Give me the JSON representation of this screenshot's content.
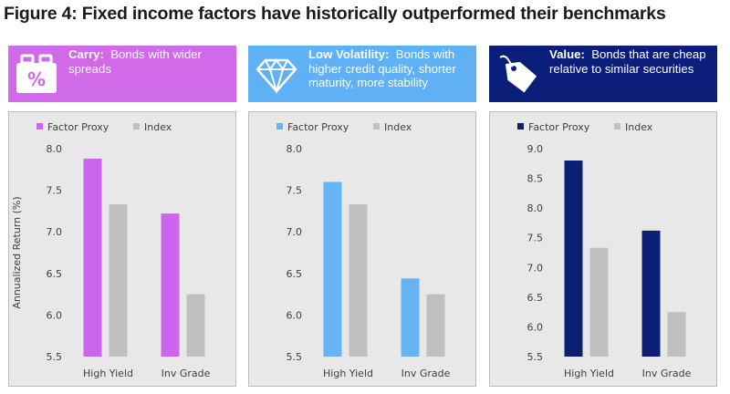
{
  "title": "Figure 4: Fixed income factors have historically outperformed their benchmarks",
  "ylabel": "Annualized Return (%)",
  "panels": [
    {
      "name": "Carry:",
      "text": "Bonds with wider spreads",
      "header_color": "#d16ae8",
      "bar_color": "#cc66ee",
      "icon": "briefcase-percent-icon"
    },
    {
      "name": "Low Volatility:",
      "text": "Bonds with higher credit quality, shorter maturity, more stability",
      "header_color": "#5fb0f5",
      "bar_color": "#66b3f5",
      "icon": "diamond-icon"
    },
    {
      "name": "Value:",
      "text": "Bonds that are cheap relative to similar securities",
      "header_color": "#0b1f7a",
      "bar_color": "#0d1f73",
      "icon": "price-tag-icon"
    }
  ],
  "chart_data": [
    {
      "type": "bar",
      "categories": [
        "High Yield",
        "Inv Grade"
      ],
      "series": [
        {
          "name": "Factor Proxy",
          "values": [
            7.88,
            7.22
          ],
          "color": "#cc66ee"
        },
        {
          "name": "Index",
          "values": [
            7.33,
            6.25
          ],
          "color": "#c0c0c0"
        }
      ],
      "ylim": [
        5.5,
        8.0
      ],
      "yticks": [
        "5.5",
        "6.0",
        "6.5",
        "7.0",
        "7.5",
        "8.0"
      ],
      "ylabel": "Annualized Return (%)",
      "legend": "top-left",
      "grid": false
    },
    {
      "type": "bar",
      "categories": [
        "High Yield",
        "Inv Grade"
      ],
      "series": [
        {
          "name": "Factor Proxy",
          "values": [
            7.6,
            6.44
          ],
          "color": "#66b3f5"
        },
        {
          "name": "Index",
          "values": [
            7.33,
            6.25
          ],
          "color": "#c0c0c0"
        }
      ],
      "ylim": [
        5.5,
        8.0
      ],
      "yticks": [
        "5.5",
        "6.0",
        "6.5",
        "7.0",
        "7.5",
        "8.0"
      ],
      "legend": "top-left",
      "grid": false
    },
    {
      "type": "bar",
      "categories": [
        "High Yield",
        "Inv Grade"
      ],
      "series": [
        {
          "name": "Factor Proxy",
          "values": [
            8.8,
            7.62
          ],
          "color": "#0d1f73"
        },
        {
          "name": "Index",
          "values": [
            7.33,
            6.25
          ],
          "color": "#c0c0c0"
        }
      ],
      "ylim": [
        5.5,
        9.0
      ],
      "yticks": [
        "5.5",
        "6.0",
        "6.5",
        "7.0",
        "7.5",
        "8.0",
        "8.5",
        "9.0"
      ],
      "legend": "top-left",
      "grid": false
    }
  ]
}
